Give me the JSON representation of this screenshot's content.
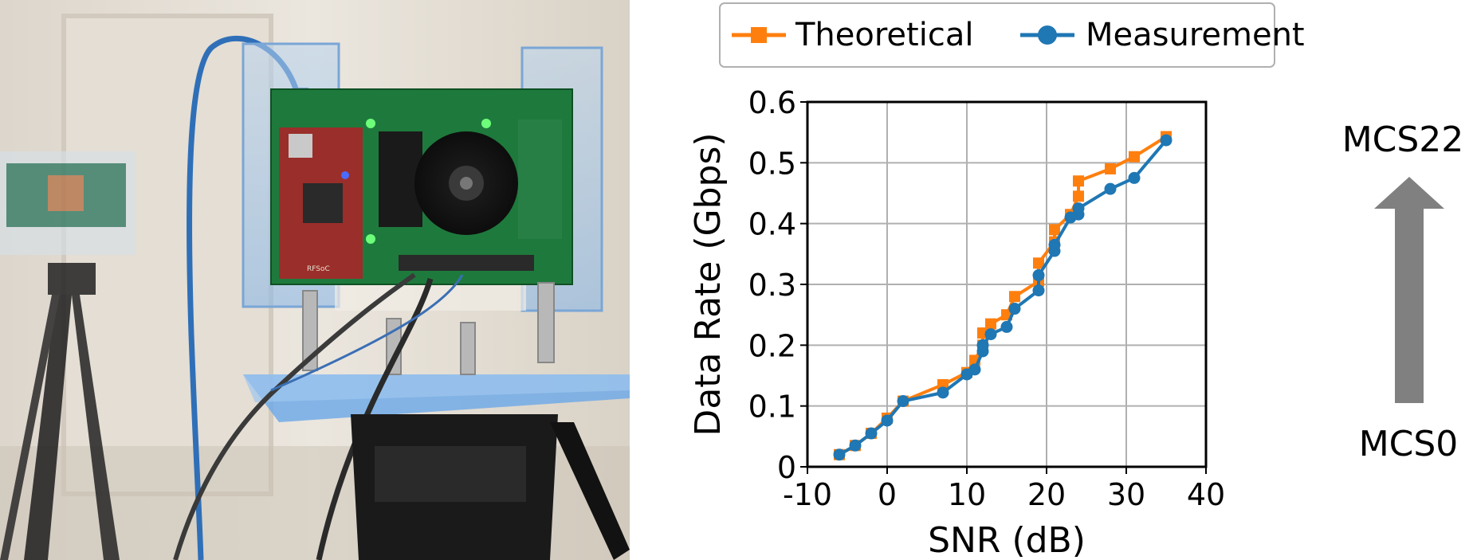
{
  "photo": {
    "board_marking": "RFSoC",
    "colors": {
      "wall": "#e8e2d8",
      "pcb_green": "#1e7a3c",
      "pcb_red": "#9a2e2a",
      "acrylic": "#6aa8e8",
      "cable_blue": "#2f6fb8"
    }
  },
  "chart_data": {
    "type": "line",
    "xlabel": "SNR (dB)",
    "ylabel": "Data Rate (Gbps)",
    "xlim": [
      -10,
      40
    ],
    "ylim": [
      0,
      0.6
    ],
    "xticks": [
      -10,
      0,
      10,
      20,
      30,
      40
    ],
    "yticks": [
      0,
      0.1,
      0.2,
      0.3,
      0.4,
      0.5,
      0.6
    ],
    "xtick_labels": [
      "-10",
      "0",
      "10",
      "20",
      "30",
      "40"
    ],
    "ytick_labels": [
      "0",
      "0.1",
      "0.2",
      "0.3",
      "0.4",
      "0.5",
      "0.6"
    ],
    "grid": true,
    "legend_position": "top",
    "series": [
      {
        "name": "Theoretical",
        "color": "#ff7f0e",
        "marker": "square",
        "x": [
          -6,
          -4,
          -2,
          0,
          2,
          7,
          10,
          11,
          12,
          12,
          13,
          15,
          16,
          19,
          19,
          21,
          21,
          23,
          24,
          24,
          28,
          31,
          35
        ],
        "y": [
          0.02,
          0.035,
          0.055,
          0.08,
          0.108,
          0.135,
          0.155,
          0.175,
          0.2,
          0.22,
          0.235,
          0.25,
          0.28,
          0.305,
          0.335,
          0.37,
          0.39,
          0.415,
          0.445,
          0.47,
          0.49,
          0.51,
          0.543
        ]
      },
      {
        "name": "Measurement",
        "color": "#1f77b4",
        "marker": "circle",
        "x": [
          -6,
          -4,
          -2,
          0,
          2,
          7,
          10,
          11,
          12,
          12,
          13,
          15,
          16,
          19,
          19,
          21,
          21,
          23,
          24,
          24,
          28,
          31,
          35
        ],
        "y": [
          0.02,
          0.035,
          0.055,
          0.076,
          0.108,
          0.122,
          0.152,
          0.16,
          0.19,
          0.2,
          0.218,
          0.23,
          0.26,
          0.29,
          0.315,
          0.355,
          0.365,
          0.41,
          0.415,
          0.425,
          0.457,
          0.475,
          0.537
        ]
      }
    ]
  },
  "annotation": {
    "top_label": "MCS22",
    "bottom_label": "MCS0",
    "arrow_color": "#808080"
  }
}
